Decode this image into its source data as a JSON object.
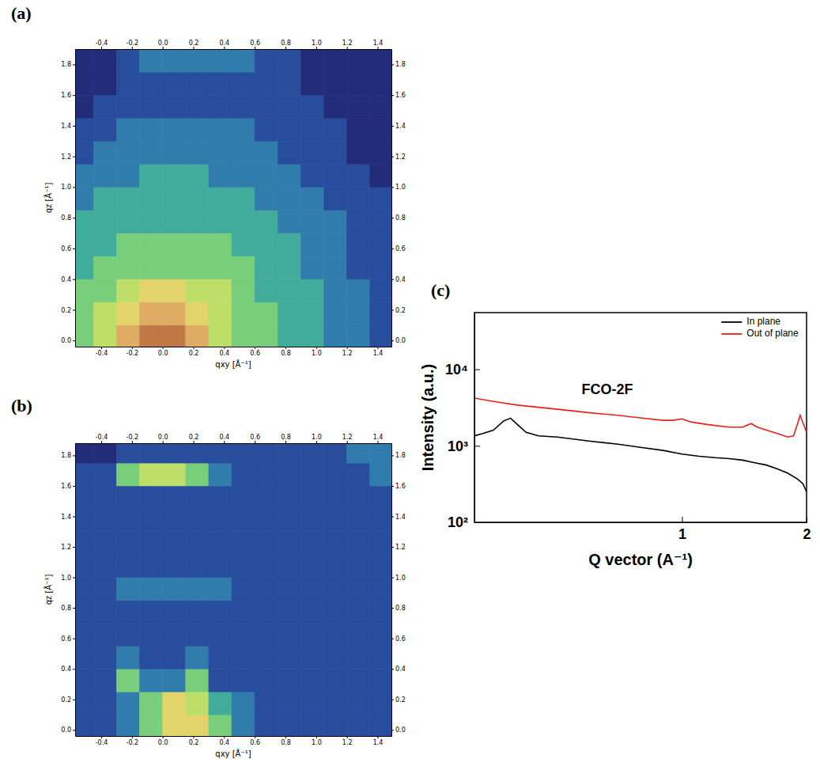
{
  "chart_data": [
    {
      "type": "heatmap",
      "panel": "(a)",
      "xlabel": "qxy [Å⁻¹]",
      "ylabel": "qz [Å⁻¹]",
      "xlim": [
        -0.57,
        1.49
      ],
      "ylim": [
        -0.04,
        1.9
      ],
      "xticks": [
        -0.4,
        -0.2,
        {
          "value": 0,
          "label": "0.0"
        },
        0.2,
        0.4,
        0.6,
        0.8,
        {
          "value": 1,
          "label": "1.0"
        },
        1.2,
        1.4
      ],
      "yticks": [
        {
          "value": 0,
          "label": "0.0"
        },
        0.2,
        0.4,
        0.6,
        0.8,
        {
          "value": 1,
          "label": "1.0"
        },
        1.2,
        1.4,
        1.6,
        1.8
      ],
      "cells": {
        "x_edges": [
          -0.6,
          -0.45,
          -0.3,
          -0.15,
          0,
          0.15,
          0.3,
          0.45,
          0.6,
          0.75,
          0.9,
          1.05,
          1.2,
          1.35,
          1.5
        ],
        "y_edges": [
          -0.05,
          0.1,
          0.25,
          0.4,
          0.55,
          0.7,
          0.85,
          1.0,
          1.15,
          1.3,
          1.45,
          1.6,
          1.75,
          1.9
        ],
        "z": [
          [
            5,
            6,
            8,
            9,
            9,
            8,
            6,
            5,
            5,
            4,
            4,
            3,
            3,
            2
          ],
          [
            5,
            6,
            7,
            8,
            8,
            7,
            6,
            5,
            5,
            4,
            4,
            3,
            3,
            2
          ],
          [
            5,
            5,
            6,
            7,
            7,
            6,
            6,
            5,
            4,
            4,
            4,
            3,
            3,
            2
          ],
          [
            4,
            5,
            5,
            5,
            5,
            5,
            5,
            5,
            4,
            4,
            3,
            3,
            2,
            2
          ],
          [
            4,
            4,
            5,
            5,
            5,
            5,
            5,
            4,
            4,
            4,
            3,
            3,
            2,
            2
          ],
          [
            4,
            4,
            4,
            4,
            4,
            4,
            4,
            4,
            4,
            3,
            3,
            3,
            2,
            2
          ],
          [
            3,
            4,
            4,
            4,
            4,
            4,
            4,
            4,
            3,
            3,
            3,
            2,
            2,
            2
          ],
          [
            3,
            3,
            3,
            4,
            4,
            4,
            3,
            3,
            3,
            3,
            2,
            2,
            2,
            1
          ],
          [
            2,
            3,
            3,
            3,
            3,
            3,
            3,
            3,
            3,
            2,
            2,
            2,
            1,
            1
          ],
          [
            2,
            2,
            3,
            3,
            3,
            3,
            3,
            3,
            2,
            2,
            2,
            2,
            1,
            1
          ],
          [
            1,
            2,
            2,
            2,
            2,
            2,
            2,
            2,
            2,
            2,
            2,
            1,
            1,
            1
          ],
          [
            1,
            1,
            2,
            2,
            2,
            2,
            2,
            2,
            2,
            2,
            1,
            1,
            1,
            1
          ],
          [
            1,
            1,
            2,
            3,
            3,
            3,
            3,
            3,
            2,
            2,
            1,
            1,
            1,
            1
          ]
        ]
      }
    },
    {
      "type": "heatmap",
      "panel": "(b)",
      "xlabel": "qxy [Å⁻¹]",
      "ylabel": "qz [Å⁻¹]",
      "xlim": [
        -0.57,
        1.49
      ],
      "ylim": [
        -0.04,
        1.88
      ],
      "xticks": [
        -0.4,
        -0.2,
        {
          "value": 0,
          "label": "0.0"
        },
        0.2,
        0.4,
        0.6,
        0.8,
        {
          "value": 1,
          "label": "1.0"
        },
        1.2,
        1.4
      ],
      "yticks": [
        {
          "value": 0,
          "label": "0.0"
        },
        0.2,
        0.4,
        0.6,
        0.8,
        {
          "value": 1,
          "label": "1.0"
        },
        1.2,
        1.4,
        1.6,
        1.8
      ],
      "cells": {
        "x_edges": [
          -0.6,
          -0.45,
          -0.3,
          -0.15,
          0,
          0.15,
          0.3,
          0.45,
          0.6,
          0.75,
          0.9,
          1.05,
          1.2,
          1.35,
          1.5
        ],
        "y_edges": [
          -0.05,
          0.1,
          0.25,
          0.4,
          0.55,
          0.7,
          0.85,
          1.0,
          1.15,
          1.3,
          1.45,
          1.6,
          1.75,
          1.9
        ],
        "z": [
          [
            2,
            2,
            3,
            5,
            7,
            7,
            5,
            3,
            2,
            2,
            2,
            2,
            2,
            2
          ],
          [
            2,
            2,
            3,
            5,
            7,
            6,
            4,
            3,
            2,
            2,
            2,
            2,
            2,
            2
          ],
          [
            2,
            2,
            5,
            3,
            3,
            5,
            2,
            2,
            2,
            2,
            2,
            2,
            2,
            2
          ],
          [
            2,
            2,
            3,
            2,
            2,
            3,
            2,
            2,
            2,
            2,
            2,
            2,
            2,
            2
          ],
          [
            2,
            2,
            2,
            2,
            2,
            2,
            2,
            2,
            2,
            2,
            2,
            2,
            2,
            2
          ],
          [
            2,
            2,
            2,
            2,
            2,
            2,
            2,
            2,
            2,
            2,
            2,
            2,
            2,
            2
          ],
          [
            2,
            2,
            3,
            3,
            3,
            3,
            3,
            2,
            2,
            2,
            2,
            2,
            2,
            2
          ],
          [
            2,
            2,
            2,
            2,
            2,
            2,
            2,
            2,
            2,
            2,
            2,
            2,
            2,
            2
          ],
          [
            2,
            2,
            2,
            2,
            2,
            2,
            2,
            2,
            2,
            2,
            2,
            2,
            2,
            2
          ],
          [
            2,
            2,
            2,
            2,
            2,
            2,
            2,
            2,
            2,
            2,
            2,
            2,
            2,
            2
          ],
          [
            2,
            2,
            2,
            2,
            2,
            2,
            2,
            2,
            2,
            2,
            2,
            2,
            2,
            2
          ],
          [
            2,
            2,
            5,
            6,
            6,
            5,
            3,
            2,
            2,
            2,
            2,
            2,
            2,
            3
          ],
          [
            1,
            1,
            2,
            2,
            2,
            2,
            2,
            2,
            2,
            2,
            2,
            2,
            3,
            3
          ]
        ]
      }
    },
    {
      "type": "line",
      "panel": "(c)",
      "xlabel": "Q vector (A⁻¹)",
      "ylabel": "Intensity (a.u.)",
      "log": true,
      "xlim": [
        0.315,
        2.0
      ],
      "ylim": [
        100,
        55000
      ],
      "xticks": [
        1,
        2
      ],
      "yticks": [
        {
          "value": 100,
          "label": "10²"
        },
        {
          "value": 1000,
          "label": "10³"
        },
        {
          "value": 10000,
          "label": "10⁴"
        }
      ],
      "legend": "upper right",
      "annotations": [
        {
          "text": "FCO-2F",
          "x": 0.66,
          "y": 5300
        }
      ],
      "series": [
        {
          "name": "In plane",
          "color": "#000000",
          "x": [
            0.315,
            0.33,
            0.35,
            0.37,
            0.385,
            0.4,
            0.42,
            0.45,
            0.5,
            0.6,
            0.7,
            0.8,
            0.9,
            1.0,
            1.1,
            1.2,
            1.3,
            1.4,
            1.5,
            1.6,
            1.7,
            1.8,
            1.9,
            1.96,
            2.0
          ],
          "values": [
            1350,
            1450,
            1600,
            2100,
            2300,
            1900,
            1500,
            1350,
            1300,
            1150,
            1050,
            950,
            870,
            780,
            730,
            700,
            680,
            650,
            600,
            560,
            500,
            440,
            370,
            320,
            250
          ]
        },
        {
          "name": "Out of plane",
          "color": "#e8201a",
          "x": [
            0.315,
            0.35,
            0.4,
            0.5,
            0.6,
            0.7,
            0.8,
            0.9,
            0.95,
            1.0,
            1.05,
            1.15,
            1.3,
            1.4,
            1.47,
            1.52,
            1.6,
            1.7,
            1.8,
            1.86,
            1.9,
            1.93,
            1.96,
            2.0
          ],
          "values": [
            4200,
            3800,
            3400,
            3000,
            2700,
            2500,
            2300,
            2150,
            2150,
            2250,
            2050,
            1900,
            1750,
            1750,
            1950,
            1750,
            1600,
            1450,
            1300,
            1350,
            1900,
            2500,
            2000,
            1500
          ]
        }
      ]
    }
  ]
}
